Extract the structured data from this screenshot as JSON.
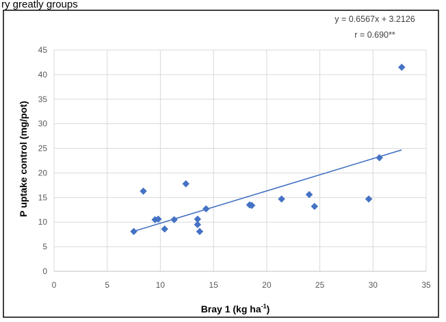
{
  "header_text": "ry greatly groups",
  "chart_data": {
    "type": "scatter",
    "title": "",
    "xlabel": "Bray 1  (kg ha",
    "xlabel_unit_exponent": "-1",
    "xlabel_suffix": ")",
    "ylabel": "P uptake control (mg/pot)",
    "xlim": [
      0,
      35
    ],
    "ylim": [
      0,
      45
    ],
    "x_ticks": [
      0,
      5,
      10,
      15,
      20,
      25,
      30,
      35
    ],
    "y_ticks": [
      0,
      5,
      10,
      15,
      20,
      25,
      30,
      35,
      40,
      45
    ],
    "grid": true,
    "marker": "diamond",
    "color": "#4472C4",
    "points": [
      {
        "x": 7.5,
        "y": 8.1
      },
      {
        "x": 8.4,
        "y": 16.3
      },
      {
        "x": 9.5,
        "y": 10.5
      },
      {
        "x": 9.8,
        "y": 10.6
      },
      {
        "x": 10.4,
        "y": 8.6
      },
      {
        "x": 11.3,
        "y": 10.5
      },
      {
        "x": 12.4,
        "y": 17.8
      },
      {
        "x": 13.5,
        "y": 10.6
      },
      {
        "x": 13.5,
        "y": 9.5
      },
      {
        "x": 13.7,
        "y": 8.1
      },
      {
        "x": 14.3,
        "y": 12.7
      },
      {
        "x": 18.4,
        "y": 13.5
      },
      {
        "x": 18.6,
        "y": 13.4
      },
      {
        "x": 21.4,
        "y": 14.7
      },
      {
        "x": 24.0,
        "y": 15.6
      },
      {
        "x": 24.5,
        "y": 13.2
      },
      {
        "x": 29.6,
        "y": 14.7
      },
      {
        "x": 30.6,
        "y": 23.1
      },
      {
        "x": 32.7,
        "y": 41.5
      }
    ],
    "trendline": {
      "slope": 0.6567,
      "intercept": 3.2126,
      "x_range": [
        7.5,
        32.7
      ]
    },
    "annotations": {
      "equation": "y = 0.6567x + 3.2126",
      "r_value": "r = 0.690**"
    }
  }
}
